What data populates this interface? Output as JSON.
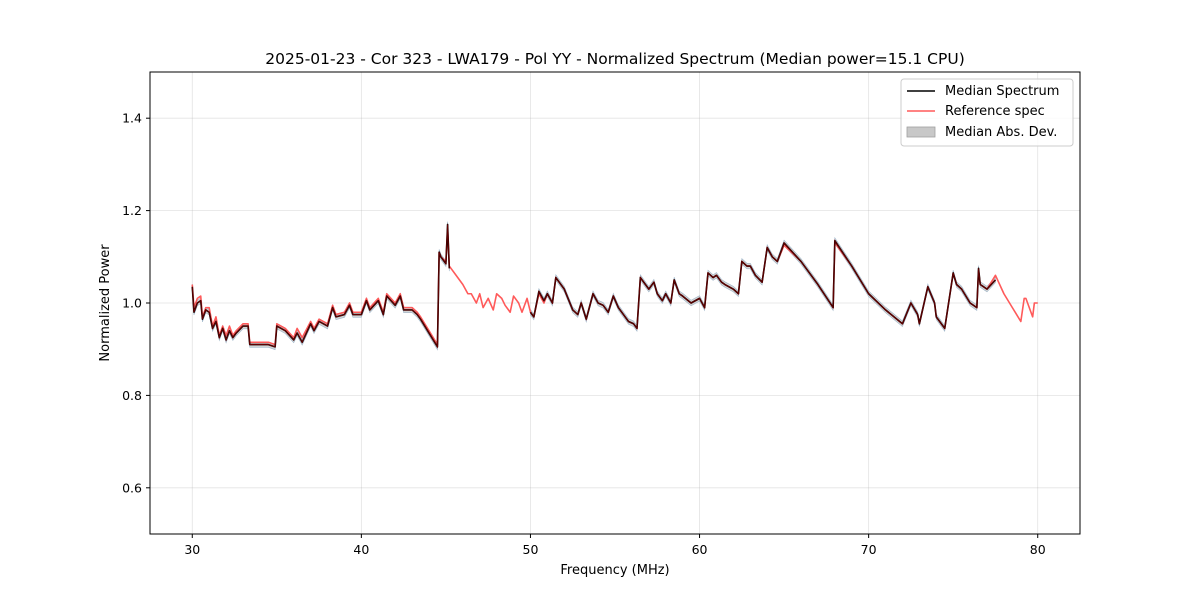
{
  "chart_data": {
    "type": "line",
    "title": "2025-01-23 - Cor 323 - LWA179 - Pol YY - Normalized Spectrum (Median power=15.1 CPU)",
    "xlabel": "Frequency (MHz)",
    "ylabel": "Normalized Power",
    "xlim": [
      27.5,
      82.5
    ],
    "ylim": [
      0.5,
      1.5
    ],
    "xticks": [
      30,
      40,
      50,
      60,
      70,
      80
    ],
    "yticks": [
      0.6,
      0.8,
      1.0,
      1.2,
      1.4
    ],
    "xtick_labels": [
      "30",
      "40",
      "50",
      "60",
      "70",
      "80"
    ],
    "ytick_labels": [
      "0.6",
      "0.8",
      "1.0",
      "1.2",
      "1.4"
    ],
    "grid": true,
    "legend_position": "top-right",
    "legend": [
      {
        "label": "Median Spectrum",
        "kind": "line",
        "color": "#000000"
      },
      {
        "label": "Reference spec",
        "kind": "line",
        "color": "#ff5a5a"
      },
      {
        "label": "Median Abs. Dev.",
        "kind": "patch",
        "color": "#c8c8c8"
      }
    ],
    "series": [
      {
        "name": "Reference spec",
        "color": "#ff5a5a",
        "x": [
          30.0,
          30.1,
          30.3,
          30.5,
          30.6,
          30.8,
          31.0,
          31.2,
          31.4,
          31.6,
          31.8,
          32.0,
          32.2,
          32.4,
          32.6,
          33.0,
          33.3,
          33.4,
          34.0,
          34.5,
          34.9,
          35.0,
          35.5,
          36.0,
          36.2,
          36.5,
          37.0,
          37.2,
          37.5,
          38.0,
          38.3,
          38.5,
          39.0,
          39.3,
          39.5,
          40.0,
          40.3,
          40.5,
          41.0,
          41.3,
          41.5,
          42.0,
          42.3,
          42.5,
          43.0,
          43.3,
          43.5,
          44.0,
          44.5,
          44.6,
          44.7,
          45.0,
          45.1,
          45.2,
          45.6,
          46.0,
          46.3,
          46.5,
          46.8,
          47.0,
          47.2,
          47.5,
          47.8,
          48.0,
          48.3,
          48.5,
          48.8,
          49.0,
          49.3,
          49.5,
          49.8,
          50.0,
          50.2,
          50.5,
          50.8,
          51.0,
          51.3,
          51.5,
          52.0,
          52.5,
          52.8,
          53.0,
          53.3,
          53.7,
          54.0,
          54.3,
          54.6,
          54.9,
          55.2,
          55.5,
          55.8,
          56.1,
          56.3,
          56.5,
          56.8,
          57.0,
          57.3,
          57.5,
          57.8,
          58.0,
          58.3,
          58.5,
          58.8,
          59.0,
          59.5,
          60.0,
          60.3,
          60.5,
          60.8,
          61.0,
          61.3,
          61.5,
          62.0,
          62.3,
          62.5,
          62.8,
          63.0,
          63.3,
          63.7,
          64.0,
          64.3,
          64.6,
          65.0,
          66.0,
          67.0,
          67.9,
          68.0,
          69.0,
          70.0,
          71.0,
          72.0,
          72.5,
          72.9,
          73.0,
          73.5,
          73.9,
          74.0,
          74.5,
          75.0,
          75.2,
          75.5,
          76.0,
          76.4,
          76.5,
          76.6,
          77.0,
          77.5,
          78.0,
          78.5,
          79.0,
          79.2,
          79.3,
          79.7,
          79.8,
          80.0
        ],
        "values": [
          1.04,
          0.99,
          1.01,
          1.015,
          0.97,
          0.99,
          0.99,
          0.95,
          0.97,
          0.93,
          0.95,
          0.93,
          0.95,
          0.93,
          0.94,
          0.955,
          0.955,
          0.915,
          0.915,
          0.915,
          0.91,
          0.955,
          0.945,
          0.925,
          0.945,
          0.925,
          0.96,
          0.945,
          0.965,
          0.955,
          0.995,
          0.975,
          0.98,
          1.0,
          0.98,
          0.98,
          1.01,
          0.99,
          1.01,
          0.98,
          1.02,
          1.0,
          1.02,
          0.99,
          0.99,
          0.98,
          0.97,
          0.94,
          0.91,
          1.11,
          1.1,
          1.09,
          1.16,
          1.08,
          1.06,
          1.04,
          1.02,
          1.02,
          1.0,
          1.02,
          0.99,
          1.01,
          0.985,
          1.02,
          1.01,
          0.995,
          0.98,
          1.015,
          1.0,
          0.98,
          1.01,
          0.98,
          0.97,
          1.02,
          1.0,
          1.02,
          1.0,
          1.055,
          1.03,
          0.985,
          0.975,
          1.0,
          0.965,
          1.02,
          1.0,
          0.995,
          0.98,
          1.015,
          0.99,
          0.975,
          0.96,
          0.955,
          0.945,
          1.055,
          1.04,
          1.03,
          1.045,
          1.02,
          1.005,
          1.02,
          1.0,
          1.05,
          1.02,
          1.015,
          1.0,
          1.01,
          0.99,
          1.065,
          1.055,
          1.06,
          1.045,
          1.04,
          1.03,
          1.02,
          1.09,
          1.08,
          1.08,
          1.06,
          1.045,
          1.12,
          1.1,
          1.09,
          1.125,
          1.09,
          1.04,
          0.99,
          1.13,
          1.08,
          1.02,
          0.985,
          0.955,
          1.0,
          0.975,
          0.955,
          1.035,
          1.0,
          0.97,
          0.945,
          1.065,
          1.04,
          1.03,
          1.0,
          0.99,
          1.07,
          1.04,
          1.03,
          1.06,
          1.02,
          0.99,
          0.96,
          1.01,
          1.01,
          0.97,
          1.0,
          1.0
        ]
      },
      {
        "name": "Median Spectrum",
        "color": "#000000",
        "x": [
          30.0,
          30.1,
          30.3,
          30.5,
          30.6,
          30.8,
          31.0,
          31.2,
          31.4,
          31.6,
          31.8,
          32.0,
          32.2,
          32.4,
          32.6,
          33.0,
          33.3,
          33.4,
          34.0,
          34.5,
          34.9,
          35.0,
          35.5,
          36.0,
          36.2,
          36.5,
          37.0,
          37.2,
          37.5,
          38.0,
          38.3,
          38.5,
          39.0,
          39.3,
          39.5,
          40.0,
          40.3,
          40.5,
          41.0,
          41.3,
          41.5,
          42.0,
          42.3,
          42.5,
          43.0,
          43.3,
          43.5,
          44.0,
          44.5,
          44.6,
          44.7,
          45.0,
          45.1,
          45.2
        ],
        "values": [
          1.035,
          0.98,
          1.0,
          1.005,
          0.965,
          0.985,
          0.98,
          0.945,
          0.96,
          0.925,
          0.945,
          0.92,
          0.94,
          0.925,
          0.935,
          0.95,
          0.95,
          0.91,
          0.91,
          0.91,
          0.905,
          0.95,
          0.94,
          0.92,
          0.935,
          0.915,
          0.955,
          0.94,
          0.96,
          0.95,
          0.99,
          0.97,
          0.975,
          0.995,
          0.975,
          0.975,
          1.005,
          0.985,
          1.005,
          0.975,
          1.015,
          0.995,
          1.015,
          0.985,
          0.985,
          0.975,
          0.965,
          0.935,
          0.905,
          1.11,
          1.1,
          1.085,
          1.17,
          1.075
        ],
        "x2": [
          50.0,
          50.2,
          50.5,
          50.8,
          51.0,
          51.3,
          51.5,
          52.0,
          52.5,
          52.8,
          53.0,
          53.3,
          53.7,
          54.0,
          54.3,
          54.6,
          54.9,
          55.2,
          55.5,
          55.8,
          56.1,
          56.3,
          56.5,
          56.8,
          57.0,
          57.3,
          57.5,
          57.8,
          58.0,
          58.3,
          58.5,
          58.8,
          59.0,
          59.5,
          60.0,
          60.3,
          60.5,
          60.8,
          61.0,
          61.3,
          61.5,
          62.0,
          62.3,
          62.5,
          62.8,
          63.0,
          63.3,
          63.7,
          64.0,
          64.3,
          64.6,
          65.0,
          66.0,
          67.0,
          67.9,
          68.0,
          69.0,
          70.0,
          71.0,
          72.0,
          72.5,
          72.9,
          73.0,
          73.5,
          73.9,
          74.0,
          74.5,
          75.0,
          75.2,
          75.5,
          76.0,
          76.4,
          76.5,
          76.6,
          77.0,
          77.5
        ],
        "values2": [
          0.98,
          0.97,
          1.025,
          1.005,
          1.02,
          1.0,
          1.055,
          1.03,
          0.985,
          0.975,
          1.0,
          0.965,
          1.02,
          1.0,
          0.995,
          0.98,
          1.015,
          0.99,
          0.975,
          0.96,
          0.955,
          0.945,
          1.055,
          1.04,
          1.03,
          1.045,
          1.02,
          1.005,
          1.02,
          1.0,
          1.05,
          1.02,
          1.015,
          1.0,
          1.01,
          0.99,
          1.065,
          1.055,
          1.06,
          1.045,
          1.04,
          1.03,
          1.02,
          1.09,
          1.08,
          1.08,
          1.06,
          1.045,
          1.12,
          1.1,
          1.09,
          1.13,
          1.09,
          1.04,
          0.99,
          1.135,
          1.08,
          1.02,
          0.985,
          0.955,
          1.0,
          0.975,
          0.955,
          1.035,
          1.0,
          0.97,
          0.945,
          1.065,
          1.04,
          1.03,
          1.0,
          0.99,
          1.075,
          1.04,
          1.03,
          1.05
        ]
      }
    ]
  }
}
